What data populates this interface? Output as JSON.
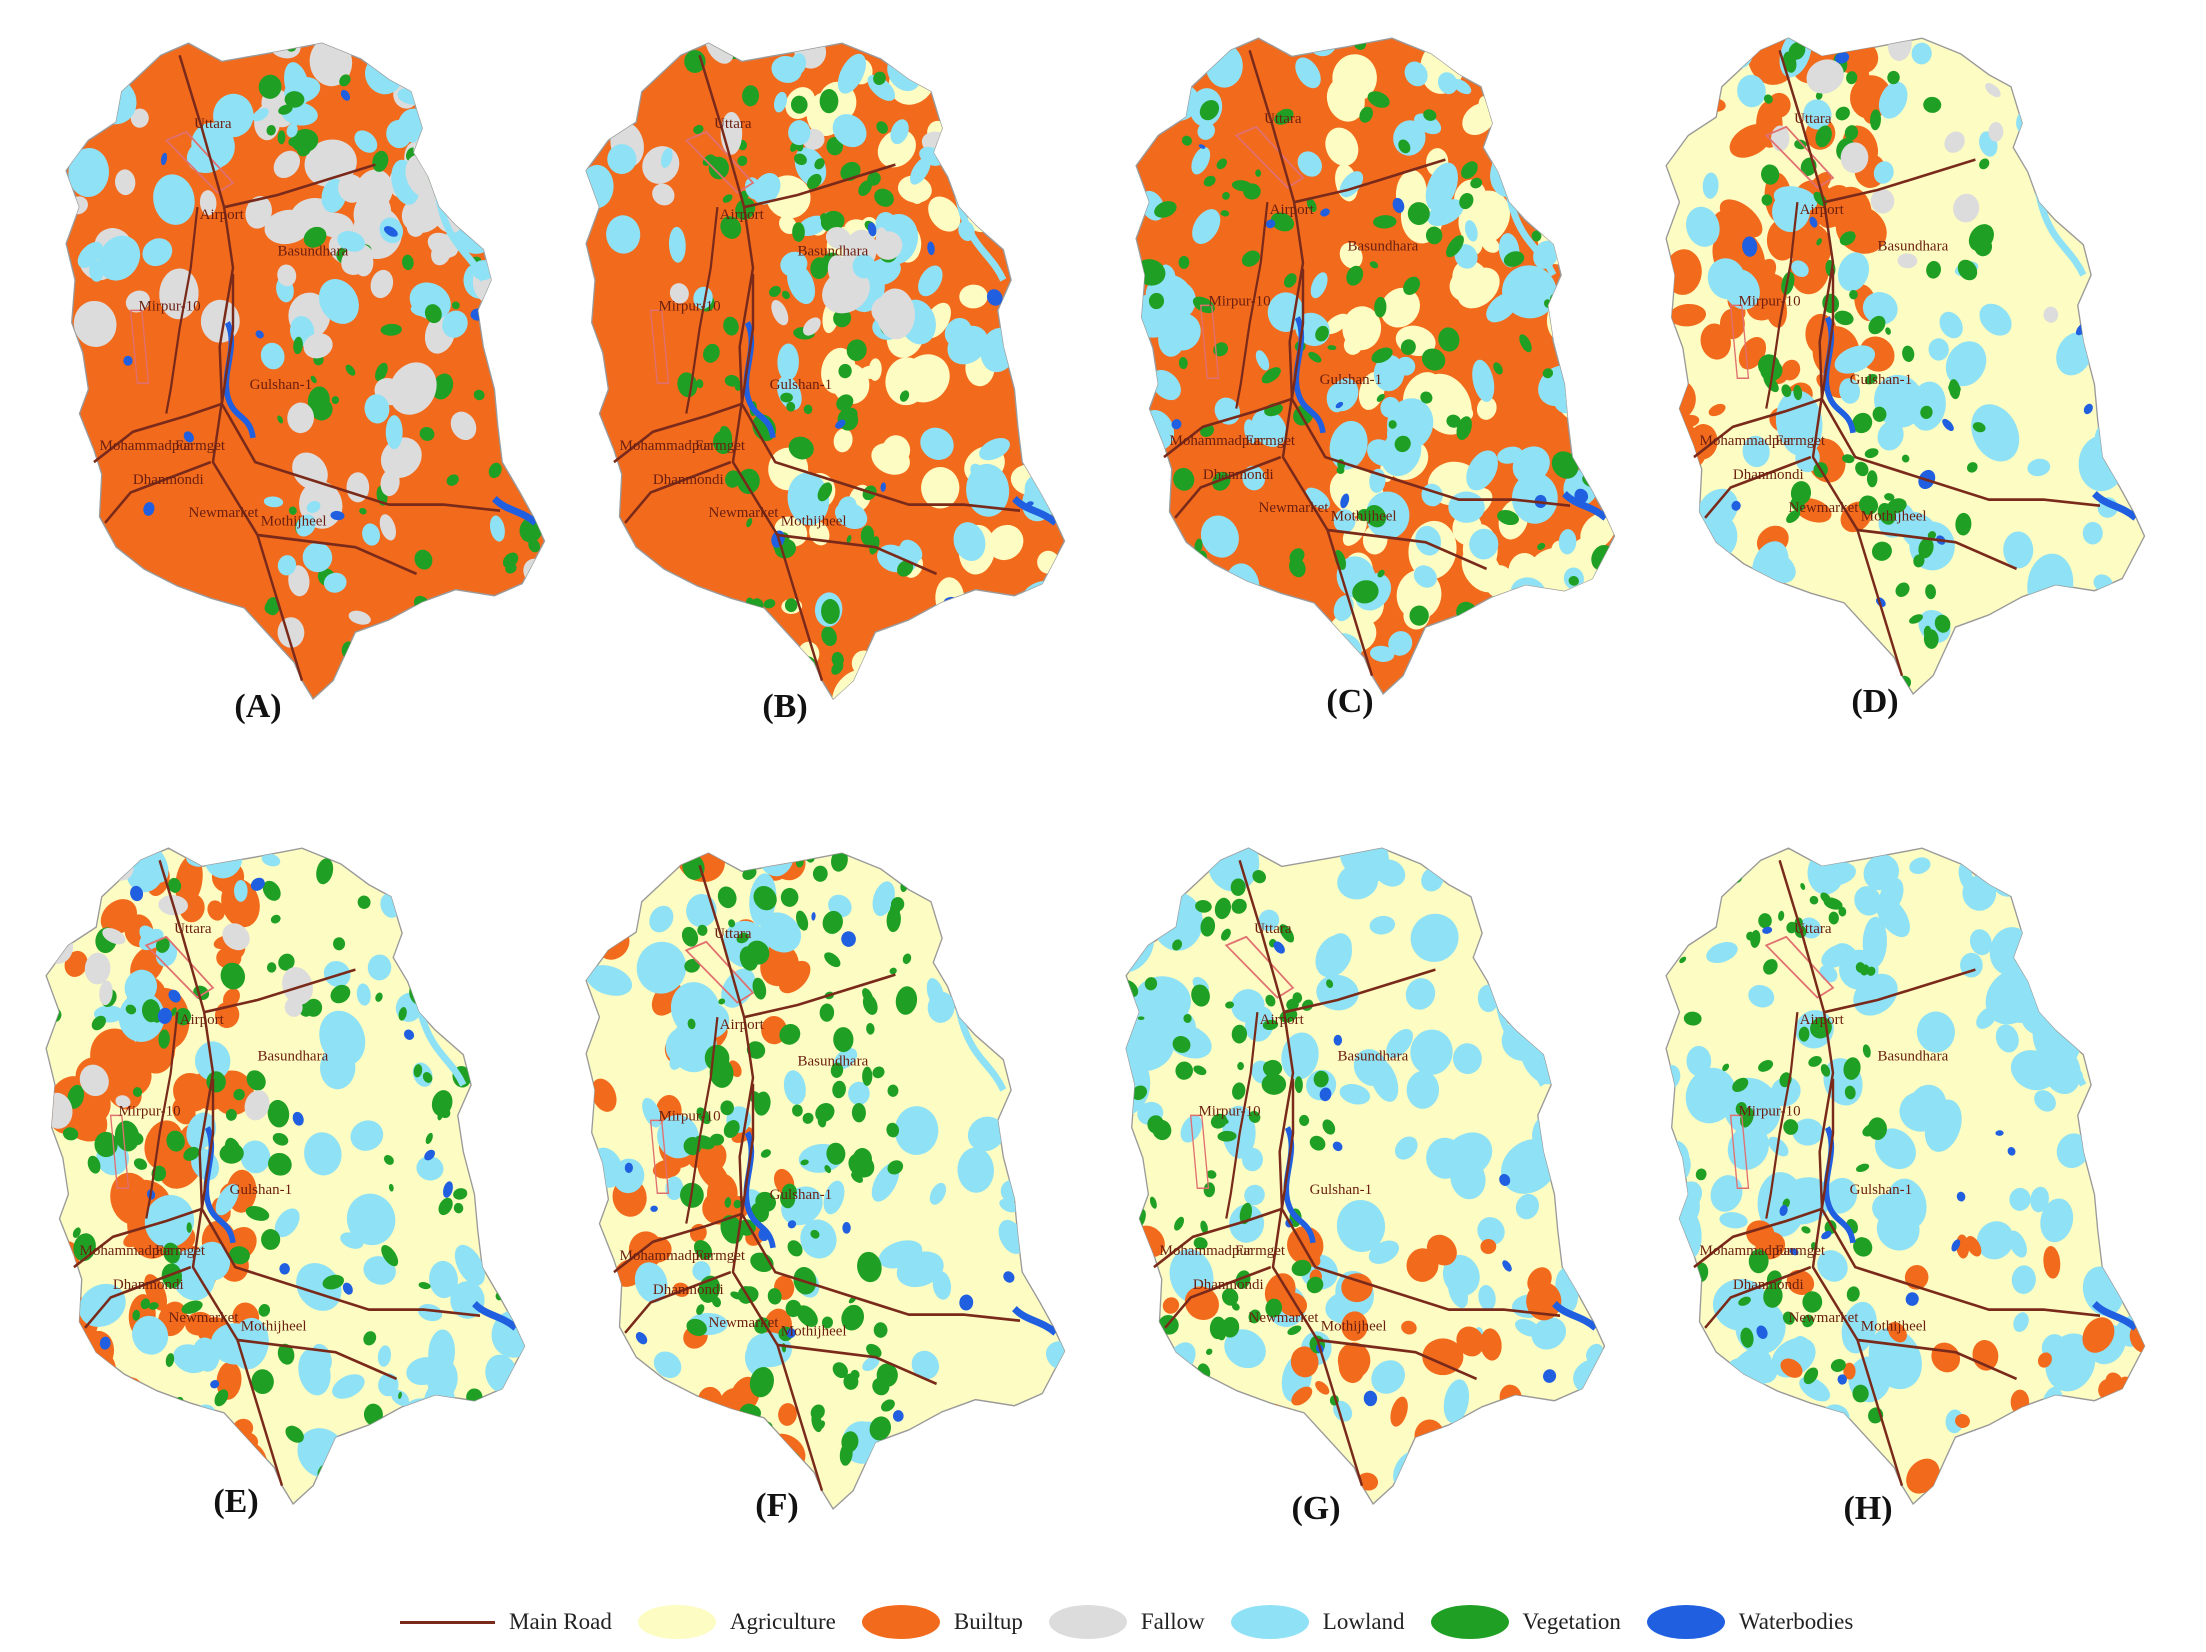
{
  "panels": [
    {
      "label": "(A)",
      "scenario": "builtup"
    },
    {
      "label": "(B)",
      "scenario": "builtup_mixed"
    },
    {
      "label": "(C)",
      "scenario": "lowland_builtup"
    },
    {
      "label": "(D)",
      "scenario": "agri_builtup"
    },
    {
      "label": "(E)",
      "scenario": "lowland_veg"
    },
    {
      "label": "(F)",
      "scenario": "agri_veg"
    },
    {
      "label": "(G)",
      "scenario": "agri_lowland"
    },
    {
      "label": "(H)",
      "scenario": "agri_lowland_sparse"
    }
  ],
  "place_names": [
    "Uttara",
    "Airport",
    "Basundhara",
    "Mirpur-10",
    "Gulshan-1",
    "Mohammadpur",
    "Farmget",
    "Dhanmondi",
    "Newmarket",
    "Mothijheel"
  ],
  "legend": [
    {
      "label": "Main Road",
      "kind": "line",
      "color": "#7a2a1a"
    },
    {
      "label": "Agriculture",
      "kind": "ellipse",
      "color": "#fdfcc2"
    },
    {
      "label": "Builtup",
      "kind": "ellipse",
      "color": "#f26a1c"
    },
    {
      "label": "Fallow",
      "kind": "ellipse",
      "color": "#dcdcdc"
    },
    {
      "label": "Lowland",
      "kind": "ellipse",
      "color": "#8fe1f5"
    },
    {
      "label": "Vegetation",
      "kind": "ellipse",
      "color": "#1fa024"
    },
    {
      "label": "Waterbodies",
      "kind": "ellipse",
      "color": "#1f5fe0"
    }
  ],
  "colors": {
    "road": "#7a2a1a",
    "road_label": "#6b1f10",
    "agriculture": "#fdfcc2",
    "builtup": "#f26a1c",
    "fallow": "#dcdcdc",
    "lowland": "#8fe1f5",
    "vegetation": "#1fa024",
    "waterbodies": "#1f5fe0"
  }
}
